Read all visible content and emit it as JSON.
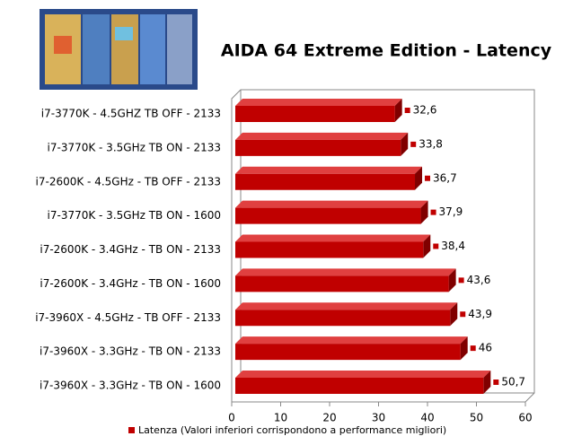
{
  "chart_data": {
    "type": "bar",
    "orientation": "horizontal",
    "title": "AIDA 64 Extreme Edition - Latency",
    "categories": [
      "i7-3770K - 4.5GHZ TB OFF - 2133",
      "i7-3770K - 3.5GHz TB ON - 2133",
      "i7-2600K - 4.5GHz - TB OFF - 2133",
      "i7-3770K - 3.5GHz  TB ON - 1600",
      "i7-2600K - 3.4GHz - TB ON - 2133",
      "i7-2600K - 3.4GHz - TB ON - 1600",
      "i7-3960X - 4.5GHz - TB OFF - 2133",
      "i7-3960X - 3.3GHz - TB ON - 2133",
      "i7-3960X - 3.3GHz - TB ON - 1600"
    ],
    "series": [
      {
        "name": "Latenza (Valori inferiori corrispondono a performance migliori)",
        "color": "#c00000",
        "values": [
          32.6,
          33.8,
          36.7,
          37.9,
          38.4,
          43.6,
          43.9,
          46,
          50.7
        ],
        "value_labels": [
          "32,6",
          "33,8",
          "36,7",
          "37,9",
          "38,4",
          "43,6",
          "43,9",
          "46",
          "50,7"
        ]
      }
    ],
    "xlim": [
      0,
      60
    ],
    "xticks": [
      0,
      10,
      20,
      30,
      40,
      50,
      60
    ],
    "legend": "bottom"
  }
}
